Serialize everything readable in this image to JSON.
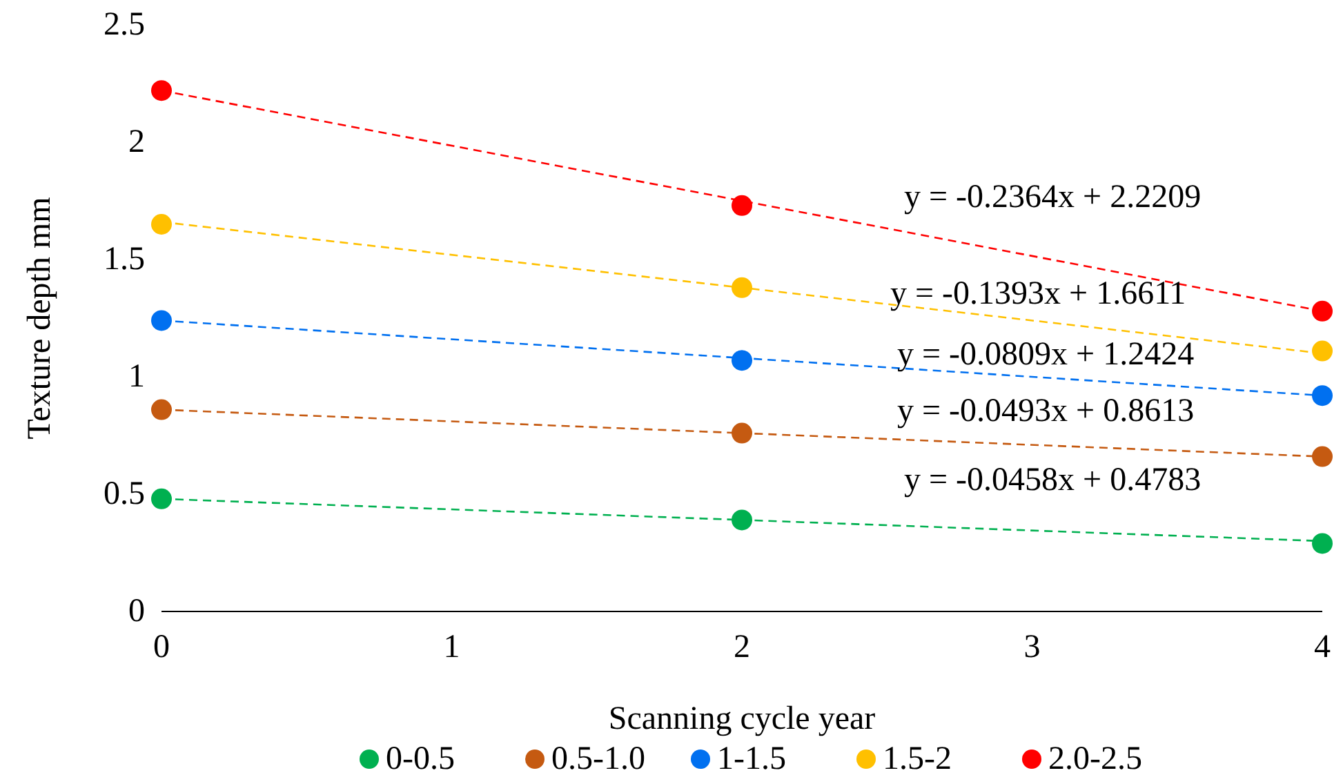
{
  "chart_data": {
    "type": "scatter",
    "xlabel": "Scanning cycle year",
    "ylabel": "Texture depth mm",
    "xlim": [
      0,
      4
    ],
    "ylim": [
      0,
      2.5
    ],
    "xticks": [
      0,
      1,
      2,
      3,
      4
    ],
    "yticks": [
      0,
      0.5,
      1,
      1.5,
      2,
      2.5
    ],
    "grid": false,
    "legend": "bottom",
    "marker": "circle",
    "x": [
      0,
      2,
      4
    ],
    "series": [
      {
        "name": "0-0.5",
        "color": "#00b050",
        "values": [
          0.48,
          0.39,
          0.29
        ]
      },
      {
        "name": "0.5-1.0",
        "color": "#c55a11",
        "values": [
          0.86,
          0.76,
          0.66
        ]
      },
      {
        "name": "1-1.5",
        "color": "#0070f0",
        "values": [
          1.24,
          1.07,
          0.92
        ]
      },
      {
        "name": "1.5-2",
        "color": "#ffc000",
        "values": [
          1.65,
          1.38,
          1.11
        ]
      },
      {
        "name": "2.0-2.5",
        "color": "#ff0000",
        "values": [
          2.22,
          1.73,
          1.28
        ]
      },
      {
        "type": "line",
        "color": "#00b050",
        "values": [
          0.48,
          0.39,
          0.3
        ],
        "line_style": "dashed",
        "marker": "none"
      },
      {
        "type": "line",
        "color": "#c55a11",
        "values": [
          0.86,
          0.76,
          0.66
        ],
        "line_style": "dashed",
        "marker": "none"
      },
      {
        "type": "line",
        "color": "#0070f0",
        "values": [
          1.24,
          1.08,
          0.92
        ],
        "line_style": "dashed",
        "marker": "none"
      },
      {
        "type": "line",
        "color": "#ffc000",
        "values": [
          1.66,
          1.38,
          1.1
        ],
        "line_style": "dashed",
        "marker": "none"
      },
      {
        "type": "line",
        "color": "#ff0000",
        "values": [
          2.22,
          1.75,
          1.28
        ],
        "line_style": "dashed",
        "marker": "none"
      }
    ],
    "annotations": [
      "y = -0.2364x + 2.2209",
      "y = -0.1393x + 1.6611",
      "y = -0.0809x + 1.2424",
      "y = -0.0493x + 0.8613",
      "y = -0.0458x + 0.4783"
    ]
  }
}
